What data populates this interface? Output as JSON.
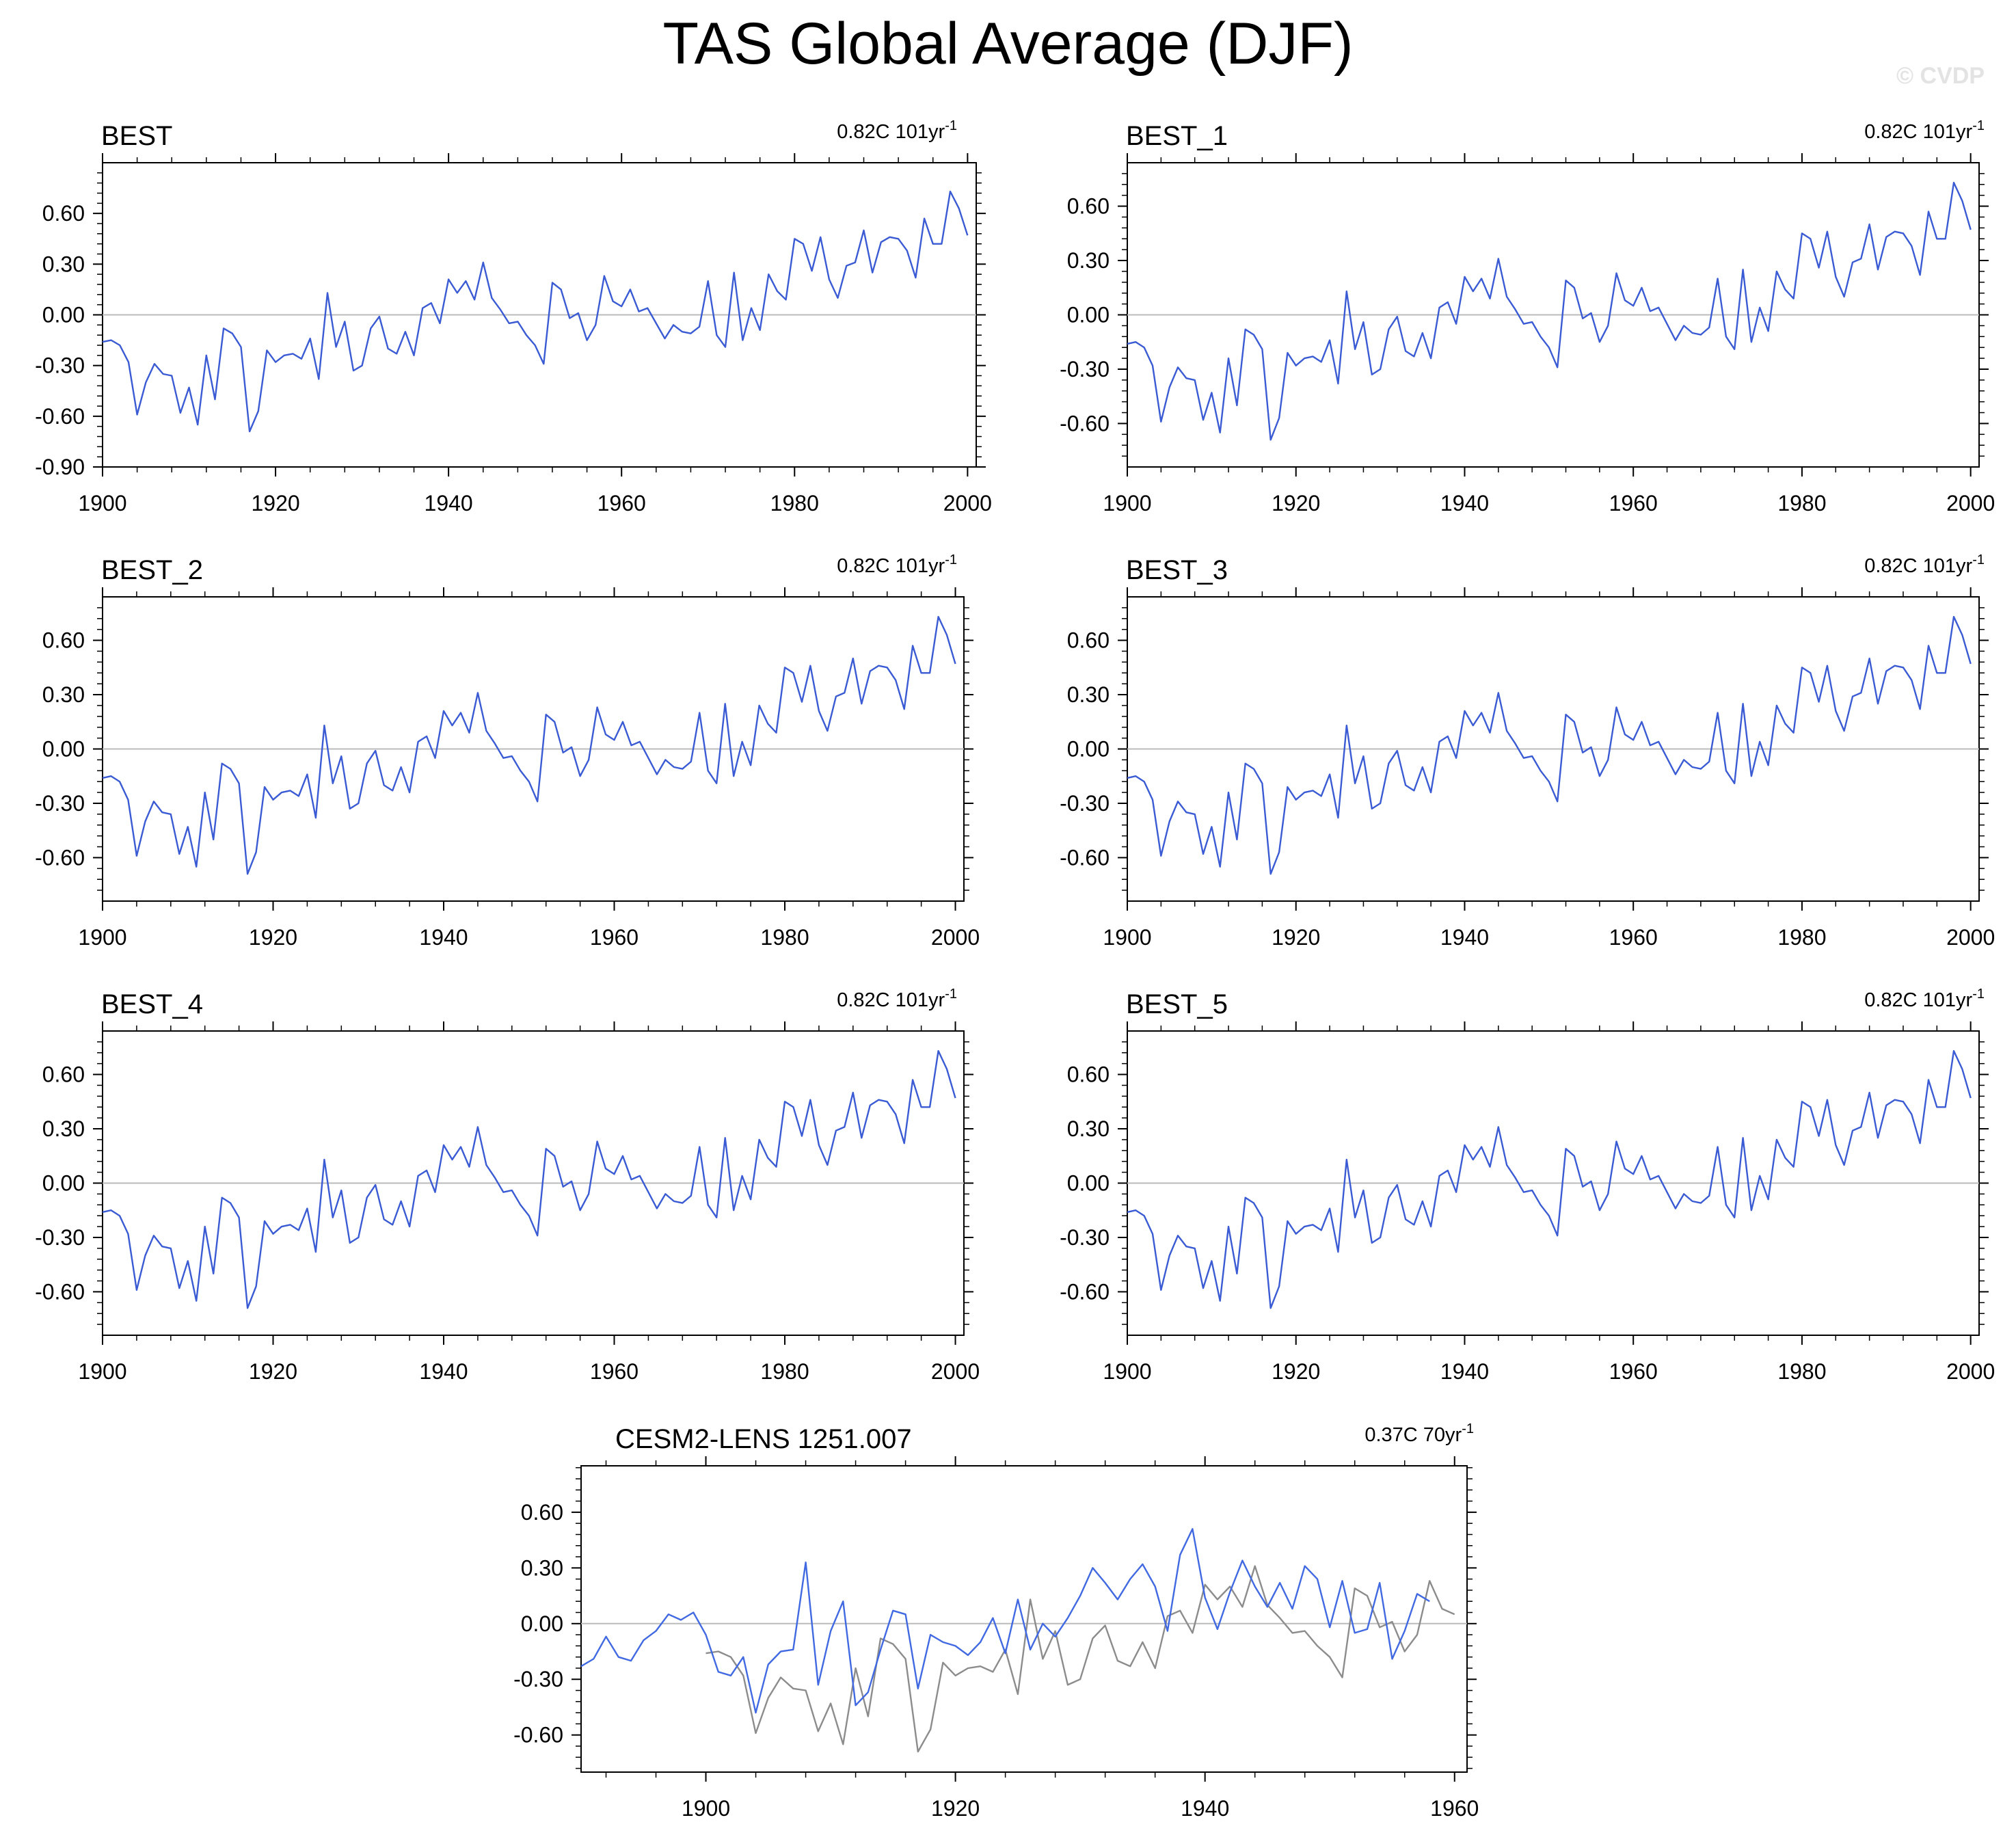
{
  "title": "TAS Global Average (DJF)",
  "watermark": "© CVDP",
  "colors": {
    "obs": "#3a5bd3",
    "model": "#4169e1",
    "obs_overlay": "#8c8c8c",
    "zero_line": "#bbbbbb",
    "axis": "#000000"
  },
  "chart_data": [
    {
      "type": "line",
      "title": "BEST",
      "trend_label": "0.82C 101yr",
      "trend_superscript": "-1",
      "xlim": [
        1900,
        2001
      ],
      "ylim": [
        -0.9,
        0.9
      ],
      "x_ticks": [
        "1900",
        "1920",
        "1940",
        "1960",
        "1980",
        "2000"
      ],
      "y_ticks": [
        "0.60",
        "0.30",
        "0.00",
        "-0.30",
        "-0.60",
        "-0.90"
      ],
      "series": [
        {
          "name": "BEST",
          "x_start": 1900,
          "values": [
            -0.16,
            -0.15,
            -0.18,
            -0.28,
            -0.59,
            -0.4,
            -0.29,
            -0.35,
            -0.36,
            -0.58,
            -0.43,
            -0.65,
            -0.24,
            -0.5,
            -0.08,
            -0.11,
            -0.19,
            -0.69,
            -0.57,
            -0.21,
            -0.28,
            -0.24,
            -0.23,
            -0.26,
            -0.14,
            -0.38,
            0.13,
            -0.19,
            -0.04,
            -0.33,
            -0.3,
            -0.08,
            -0.01,
            -0.2,
            -0.23,
            -0.1,
            -0.24,
            0.04,
            0.07,
            -0.05,
            0.21,
            0.13,
            0.2,
            0.09,
            0.31,
            0.1,
            0.03,
            -0.05,
            -0.04,
            -0.12,
            -0.18,
            -0.29,
            0.19,
            0.15,
            -0.02,
            0.01,
            -0.15,
            -0.06,
            0.23,
            0.08,
            0.05,
            0.15,
            0.02,
            0.04,
            -0.05,
            -0.14,
            -0.06,
            -0.1,
            -0.11,
            -0.07,
            0.2,
            -0.12,
            -0.19,
            0.25,
            -0.15,
            0.04,
            -0.09,
            0.24,
            0.14,
            0.09,
            0.45,
            0.42,
            0.26,
            0.46,
            0.21,
            0.1,
            0.29,
            0.31,
            0.5,
            0.25,
            0.43,
            0.46,
            0.45,
            0.38,
            0.22,
            0.57,
            0.42,
            0.42,
            0.73,
            0.63,
            0.47
          ]
        }
      ]
    },
    {
      "type": "line",
      "title": "BEST_1",
      "trend_label": "0.82C 101yr",
      "trend_superscript": "-1",
      "xlim": [
        1900,
        2001
      ],
      "ylim": [
        -0.84,
        0.84
      ],
      "x_ticks": [
        "1900",
        "1920",
        "1940",
        "1960",
        "1980",
        "2000"
      ],
      "y_ticks": [
        "0.60",
        "0.30",
        "0.00",
        "-0.30",
        "-0.60"
      ],
      "series": [
        {
          "name": "BEST_1",
          "x_start": 1900,
          "values": [
            -0.16,
            -0.15,
            -0.18,
            -0.28,
            -0.59,
            -0.4,
            -0.29,
            -0.35,
            -0.36,
            -0.58,
            -0.43,
            -0.65,
            -0.24,
            -0.5,
            -0.08,
            -0.11,
            -0.19,
            -0.69,
            -0.57,
            -0.21,
            -0.28,
            -0.24,
            -0.23,
            -0.26,
            -0.14,
            -0.38,
            0.13,
            -0.19,
            -0.04,
            -0.33,
            -0.3,
            -0.08,
            -0.01,
            -0.2,
            -0.23,
            -0.1,
            -0.24,
            0.04,
            0.07,
            -0.05,
            0.21,
            0.13,
            0.2,
            0.09,
            0.31,
            0.1,
            0.03,
            -0.05,
            -0.04,
            -0.12,
            -0.18,
            -0.29,
            0.19,
            0.15,
            -0.02,
            0.01,
            -0.15,
            -0.06,
            0.23,
            0.08,
            0.05,
            0.15,
            0.02,
            0.04,
            -0.05,
            -0.14,
            -0.06,
            -0.1,
            -0.11,
            -0.07,
            0.2,
            -0.12,
            -0.19,
            0.25,
            -0.15,
            0.04,
            -0.09,
            0.24,
            0.14,
            0.09,
            0.45,
            0.42,
            0.26,
            0.46,
            0.21,
            0.1,
            0.29,
            0.31,
            0.5,
            0.25,
            0.43,
            0.46,
            0.45,
            0.38,
            0.22,
            0.57,
            0.42,
            0.42,
            0.73,
            0.63,
            0.47
          ]
        }
      ]
    },
    {
      "type": "line",
      "title": "BEST_2",
      "trend_label": "0.82C 101yr",
      "trend_superscript": "-1",
      "xlim": [
        1900,
        2001
      ],
      "ylim": [
        -0.84,
        0.84
      ],
      "x_ticks": [
        "1900",
        "1920",
        "1940",
        "1960",
        "1980",
        "2000"
      ],
      "y_ticks": [
        "0.60",
        "0.30",
        "0.00",
        "-0.30",
        "-0.60"
      ],
      "series": [
        {
          "name": "BEST_2",
          "x_start": 1900,
          "values": [
            -0.16,
            -0.15,
            -0.18,
            -0.28,
            -0.59,
            -0.4,
            -0.29,
            -0.35,
            -0.36,
            -0.58,
            -0.43,
            -0.65,
            -0.24,
            -0.5,
            -0.08,
            -0.11,
            -0.19,
            -0.69,
            -0.57,
            -0.21,
            -0.28,
            -0.24,
            -0.23,
            -0.26,
            -0.14,
            -0.38,
            0.13,
            -0.19,
            -0.04,
            -0.33,
            -0.3,
            -0.08,
            -0.01,
            -0.2,
            -0.23,
            -0.1,
            -0.24,
            0.04,
            0.07,
            -0.05,
            0.21,
            0.13,
            0.2,
            0.09,
            0.31,
            0.1,
            0.03,
            -0.05,
            -0.04,
            -0.12,
            -0.18,
            -0.29,
            0.19,
            0.15,
            -0.02,
            0.01,
            -0.15,
            -0.06,
            0.23,
            0.08,
            0.05,
            0.15,
            0.02,
            0.04,
            -0.05,
            -0.14,
            -0.06,
            -0.1,
            -0.11,
            -0.07,
            0.2,
            -0.12,
            -0.19,
            0.25,
            -0.15,
            0.04,
            -0.09,
            0.24,
            0.14,
            0.09,
            0.45,
            0.42,
            0.26,
            0.46,
            0.21,
            0.1,
            0.29,
            0.31,
            0.5,
            0.25,
            0.43,
            0.46,
            0.45,
            0.38,
            0.22,
            0.57,
            0.42,
            0.42,
            0.73,
            0.63,
            0.47
          ]
        }
      ]
    },
    {
      "type": "line",
      "title": "BEST_3",
      "trend_label": "0.82C 101yr",
      "trend_superscript": "-1",
      "xlim": [
        1900,
        2001
      ],
      "ylim": [
        -0.84,
        0.84
      ],
      "x_ticks": [
        "1900",
        "1920",
        "1940",
        "1960",
        "1980",
        "2000"
      ],
      "y_ticks": [
        "0.60",
        "0.30",
        "0.00",
        "-0.30",
        "-0.60"
      ],
      "series": [
        {
          "name": "BEST_3",
          "x_start": 1900,
          "values": [
            -0.16,
            -0.15,
            -0.18,
            -0.28,
            -0.59,
            -0.4,
            -0.29,
            -0.35,
            -0.36,
            -0.58,
            -0.43,
            -0.65,
            -0.24,
            -0.5,
            -0.08,
            -0.11,
            -0.19,
            -0.69,
            -0.57,
            -0.21,
            -0.28,
            -0.24,
            -0.23,
            -0.26,
            -0.14,
            -0.38,
            0.13,
            -0.19,
            -0.04,
            -0.33,
            -0.3,
            -0.08,
            -0.01,
            -0.2,
            -0.23,
            -0.1,
            -0.24,
            0.04,
            0.07,
            -0.05,
            0.21,
            0.13,
            0.2,
            0.09,
            0.31,
            0.1,
            0.03,
            -0.05,
            -0.04,
            -0.12,
            -0.18,
            -0.29,
            0.19,
            0.15,
            -0.02,
            0.01,
            -0.15,
            -0.06,
            0.23,
            0.08,
            0.05,
            0.15,
            0.02,
            0.04,
            -0.05,
            -0.14,
            -0.06,
            -0.1,
            -0.11,
            -0.07,
            0.2,
            -0.12,
            -0.19,
            0.25,
            -0.15,
            0.04,
            -0.09,
            0.24,
            0.14,
            0.09,
            0.45,
            0.42,
            0.26,
            0.46,
            0.21,
            0.1,
            0.29,
            0.31,
            0.5,
            0.25,
            0.43,
            0.46,
            0.45,
            0.38,
            0.22,
            0.57,
            0.42,
            0.42,
            0.73,
            0.63,
            0.47
          ]
        }
      ]
    },
    {
      "type": "line",
      "title": "BEST_4",
      "trend_label": "0.82C 101yr",
      "trend_superscript": "-1",
      "xlim": [
        1900,
        2001
      ],
      "ylim": [
        -0.84,
        0.84
      ],
      "x_ticks": [
        "1900",
        "1920",
        "1940",
        "1960",
        "1980",
        "2000"
      ],
      "y_ticks": [
        "0.60",
        "0.30",
        "0.00",
        "-0.30",
        "-0.60"
      ],
      "series": [
        {
          "name": "BEST_4",
          "x_start": 1900,
          "values": [
            -0.16,
            -0.15,
            -0.18,
            -0.28,
            -0.59,
            -0.4,
            -0.29,
            -0.35,
            -0.36,
            -0.58,
            -0.43,
            -0.65,
            -0.24,
            -0.5,
            -0.08,
            -0.11,
            -0.19,
            -0.69,
            -0.57,
            -0.21,
            -0.28,
            -0.24,
            -0.23,
            -0.26,
            -0.14,
            -0.38,
            0.13,
            -0.19,
            -0.04,
            -0.33,
            -0.3,
            -0.08,
            -0.01,
            -0.2,
            -0.23,
            -0.1,
            -0.24,
            0.04,
            0.07,
            -0.05,
            0.21,
            0.13,
            0.2,
            0.09,
            0.31,
            0.1,
            0.03,
            -0.05,
            -0.04,
            -0.12,
            -0.18,
            -0.29,
            0.19,
            0.15,
            -0.02,
            0.01,
            -0.15,
            -0.06,
            0.23,
            0.08,
            0.05,
            0.15,
            0.02,
            0.04,
            -0.05,
            -0.14,
            -0.06,
            -0.1,
            -0.11,
            -0.07,
            0.2,
            -0.12,
            -0.19,
            0.25,
            -0.15,
            0.04,
            -0.09,
            0.24,
            0.14,
            0.09,
            0.45,
            0.42,
            0.26,
            0.46,
            0.21,
            0.1,
            0.29,
            0.31,
            0.5,
            0.25,
            0.43,
            0.46,
            0.45,
            0.38,
            0.22,
            0.57,
            0.42,
            0.42,
            0.73,
            0.63,
            0.47
          ]
        }
      ]
    },
    {
      "type": "line",
      "title": "BEST_5",
      "trend_label": "0.82C 101yr",
      "trend_superscript": "-1",
      "xlim": [
        1900,
        2001
      ],
      "ylim": [
        -0.84,
        0.84
      ],
      "x_ticks": [
        "1900",
        "1920",
        "1940",
        "1960",
        "1980",
        "2000"
      ],
      "y_ticks": [
        "0.60",
        "0.30",
        "0.00",
        "-0.30",
        "-0.60"
      ],
      "series": [
        {
          "name": "BEST_5",
          "x_start": 1900,
          "values": [
            -0.16,
            -0.15,
            -0.18,
            -0.28,
            -0.59,
            -0.4,
            -0.29,
            -0.35,
            -0.36,
            -0.58,
            -0.43,
            -0.65,
            -0.24,
            -0.5,
            -0.08,
            -0.11,
            -0.19,
            -0.69,
            -0.57,
            -0.21,
            -0.28,
            -0.24,
            -0.23,
            -0.26,
            -0.14,
            -0.38,
            0.13,
            -0.19,
            -0.04,
            -0.33,
            -0.3,
            -0.08,
            -0.01,
            -0.2,
            -0.23,
            -0.1,
            -0.24,
            0.04,
            0.07,
            -0.05,
            0.21,
            0.13,
            0.2,
            0.09,
            0.31,
            0.1,
            0.03,
            -0.05,
            -0.04,
            -0.12,
            -0.18,
            -0.29,
            0.19,
            0.15,
            -0.02,
            0.01,
            -0.15,
            -0.06,
            0.23,
            0.08,
            0.05,
            0.15,
            0.02,
            0.04,
            -0.05,
            -0.14,
            -0.06,
            -0.1,
            -0.11,
            -0.07,
            0.2,
            -0.12,
            -0.19,
            0.25,
            -0.15,
            0.04,
            -0.09,
            0.24,
            0.14,
            0.09,
            0.45,
            0.42,
            0.26,
            0.46,
            0.21,
            0.1,
            0.29,
            0.31,
            0.5,
            0.25,
            0.43,
            0.46,
            0.45,
            0.38,
            0.22,
            0.57,
            0.42,
            0.42,
            0.73,
            0.63,
            0.47
          ]
        }
      ]
    },
    {
      "type": "line",
      "title": "CESM2-LENS 1251.007",
      "trend_label": "0.37C 70yr",
      "trend_superscript": "-1",
      "xlim": [
        1890,
        1961
      ],
      "ylim": [
        -0.8,
        0.85
      ],
      "x_ticks": [
        "1900",
        "1920",
        "1940",
        "1960"
      ],
      "y_ticks": [
        "0.60",
        "0.30",
        "0.00",
        "-0.30",
        "-0.60"
      ],
      "series": [
        {
          "name": "CESM2-LENS 1251.007",
          "x_start": 1890,
          "values": [
            -0.23,
            -0.19,
            -0.07,
            -0.18,
            -0.2,
            -0.09,
            -0.04,
            0.05,
            0.02,
            0.06,
            -0.06,
            -0.26,
            -0.28,
            -0.18,
            -0.48,
            -0.22,
            -0.15,
            -0.14,
            0.33,
            -0.33,
            -0.04,
            0.12,
            -0.44,
            -0.37,
            -0.14,
            0.07,
            0.05,
            -0.35,
            -0.06,
            -0.1,
            -0.12,
            -0.17,
            -0.1,
            0.03,
            -0.16,
            0.13,
            -0.14,
            0.0,
            -0.07,
            0.03,
            0.15,
            0.3,
            0.22,
            0.13,
            0.24,
            0.32,
            0.2,
            -0.04,
            0.37,
            0.51,
            0.14,
            -0.03,
            0.17,
            0.34,
            0.2,
            0.09,
            0.22,
            0.08,
            0.31,
            0.24,
            -0.02,
            0.23,
            -0.05,
            -0.03,
            0.22,
            -0.19,
            -0.04,
            0.16,
            0.12
          ]
        },
        {
          "name": "BEST",
          "x_start": 1900,
          "values": [
            -0.16,
            -0.15,
            -0.18,
            -0.28,
            -0.59,
            -0.4,
            -0.29,
            -0.35,
            -0.36,
            -0.58,
            -0.43,
            -0.65,
            -0.24,
            -0.5,
            -0.08,
            -0.11,
            -0.19,
            -0.69,
            -0.57,
            -0.21,
            -0.28,
            -0.24,
            -0.23,
            -0.26,
            -0.14,
            -0.38,
            0.13,
            -0.19,
            -0.04,
            -0.33,
            -0.3,
            -0.08,
            -0.01,
            -0.2,
            -0.23,
            -0.1,
            -0.24,
            0.04,
            0.07,
            -0.05,
            0.21,
            0.13,
            0.2,
            0.09,
            0.31,
            0.1,
            0.03,
            -0.05,
            -0.04,
            -0.12,
            -0.18,
            -0.29,
            0.19,
            0.15,
            -0.02,
            0.01,
            -0.15,
            -0.06,
            0.23,
            0.08,
            0.05
          ]
        }
      ]
    }
  ]
}
